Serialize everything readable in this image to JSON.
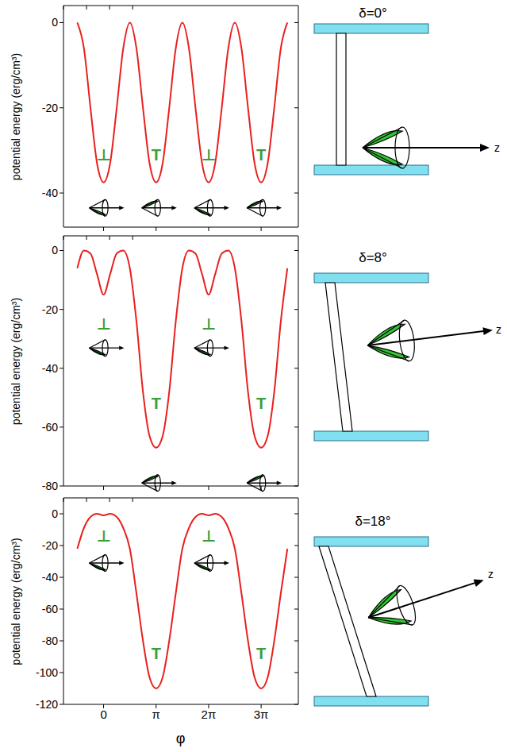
{
  "chart_data": [
    {
      "type": "line",
      "color": "#e8211e",
      "y_label": "potential energy (erg/cm³)",
      "x": [
        -1.5708,
        -1.1781,
        -0.7854,
        -0.3927,
        0,
        0.3927,
        0.7854,
        1.1781,
        1.5708,
        1.9635,
        2.3562,
        2.7489,
        3.1416,
        3.5343,
        3.927,
        4.3197,
        4.7124,
        5.1051,
        5.4978,
        5.8905,
        6.2832,
        6.6759,
        7.0686,
        7.4613,
        7.854,
        8.2467,
        8.6394,
        9.0321,
        9.4248,
        9.8175,
        10.2102,
        10.6029,
        10.9956
      ],
      "values": [
        0,
        -6,
        -20,
        -33,
        -37.5,
        -33,
        -20,
        -6,
        0,
        -6,
        -20,
        -33,
        -37.5,
        -33,
        -20,
        -6,
        0,
        -6,
        -20,
        -33,
        -37.5,
        -33,
        -20,
        -6,
        0,
        -6,
        -20,
        -33,
        -37.5,
        -33,
        -20,
        -6,
        0
      ],
      "xlim": [
        -2.4,
        11.65
      ],
      "xticks": [
        0,
        {
          "value": 3.1416,
          "label": "π"
        },
        {
          "value": 6.2832,
          "label": "2π"
        },
        {
          "value": 9.4248,
          "label": "3π"
        }
      ],
      "ylim": [
        -48,
        4
      ],
      "yticks": [
        0,
        -20,
        -40
      ],
      "tick_labels": "y",
      "annotations": [
        {
          "text": "⊥",
          "x": 0,
          "y": -31
        },
        {
          "text": "T",
          "x": 3.1416,
          "y": -31
        },
        {
          "text": "⊥",
          "x": 6.2832,
          "y": -31
        },
        {
          "text": "T",
          "x": 9.4248,
          "y": -31
        }
      ]
    },
    {
      "type": "line",
      "color": "#e8211e",
      "y_label": "potential energy (erg/cm³)",
      "x": [
        -1.5708,
        -1.1781,
        -0.7854,
        -0.3927,
        0,
        0.3927,
        0.7854,
        1.1781,
        1.5708,
        1.9635,
        2.3562,
        2.7489,
        3.1416,
        3.5343,
        3.927,
        4.3197,
        4.7124,
        5.1051,
        5.4978,
        5.8905,
        6.2832,
        6.6759,
        7.0686,
        7.4613,
        7.854,
        8.2467,
        8.6394,
        9.0321,
        9.4248,
        9.8175,
        10.2102,
        10.6029,
        10.9956
      ],
      "values": [
        -6,
        0,
        -1,
        -8,
        -15,
        -8,
        -1,
        0,
        -6,
        -24,
        -48,
        -63,
        -67,
        -63,
        -48,
        -24,
        -6,
        0,
        -1,
        -8,
        -15,
        -8,
        -1,
        0,
        -6,
        -24,
        -48,
        -63,
        -67,
        -63,
        -48,
        -24,
        -6
      ],
      "xlim": [
        -2.4,
        11.65
      ],
      "xticks": [
        0,
        {
          "value": 3.1416,
          "label": "π"
        },
        {
          "value": 6.2832,
          "label": "2π"
        },
        {
          "value": 9.4248,
          "label": "3π"
        }
      ],
      "ylim": [
        -80,
        5
      ],
      "yticks": [
        0,
        -20,
        -40,
        -60,
        -80
      ],
      "tick_labels": "y",
      "annotations": [
        {
          "text": "⊥",
          "x": 0,
          "y": -25
        },
        {
          "text": "T",
          "x": 3.1416,
          "y": -52
        },
        {
          "text": "⊥",
          "x": 6.2832,
          "y": -25
        },
        {
          "text": "T",
          "x": 9.4248,
          "y": -52
        }
      ]
    },
    {
      "type": "line",
      "color": "#e8211e",
      "y_label": "potential energy (erg/cm³)",
      "x_label": "φ",
      "x": [
        -1.5708,
        -1.1781,
        -0.7854,
        -0.3927,
        0,
        0.3927,
        0.7854,
        1.1781,
        1.5708,
        1.9635,
        2.3562,
        2.7489,
        3.1416,
        3.5343,
        3.927,
        4.3197,
        4.7124,
        5.1051,
        5.4978,
        5.8905,
        6.2832,
        6.6759,
        7.0686,
        7.4613,
        7.854,
        8.2467,
        8.6394,
        9.0321,
        9.4248,
        9.8175,
        10.2102,
        10.6029,
        10.9956
      ],
      "values": [
        -22,
        -9,
        -2,
        0,
        -1,
        0,
        -2,
        -9,
        -22,
        -50,
        -80,
        -103,
        -110,
        -103,
        -80,
        -50,
        -22,
        -9,
        -2,
        0,
        -1,
        0,
        -2,
        -9,
        -22,
        -50,
        -80,
        -103,
        -110,
        -103,
        -80,
        -50,
        -22
      ],
      "xlim": [
        -2.4,
        11.65
      ],
      "xticks": [
        0,
        {
          "value": 3.1416,
          "label": "π"
        },
        {
          "value": 6.2832,
          "label": "2π"
        },
        {
          "value": 9.4248,
          "label": "3π"
        }
      ],
      "ylim": [
        -120,
        10
      ],
      "yticks": [
        0,
        -20,
        -40,
        -60,
        -80,
        -100,
        -120
      ],
      "annotations": [
        {
          "text": "⊥",
          "x": 0,
          "y": -14
        },
        {
          "text": "T",
          "x": 3.1416,
          "y": -88
        },
        {
          "text": "⊥",
          "x": 6.2832,
          "y": -14
        },
        {
          "text": "T",
          "x": 9.4248,
          "y": -88
        }
      ]
    }
  ],
  "schematics": [
    {
      "label": "δ=0°",
      "axis_label": "z"
    },
    {
      "label": "δ=8°",
      "axis_label": "z"
    },
    {
      "label": "δ=18°",
      "axis_label": "z"
    }
  ]
}
